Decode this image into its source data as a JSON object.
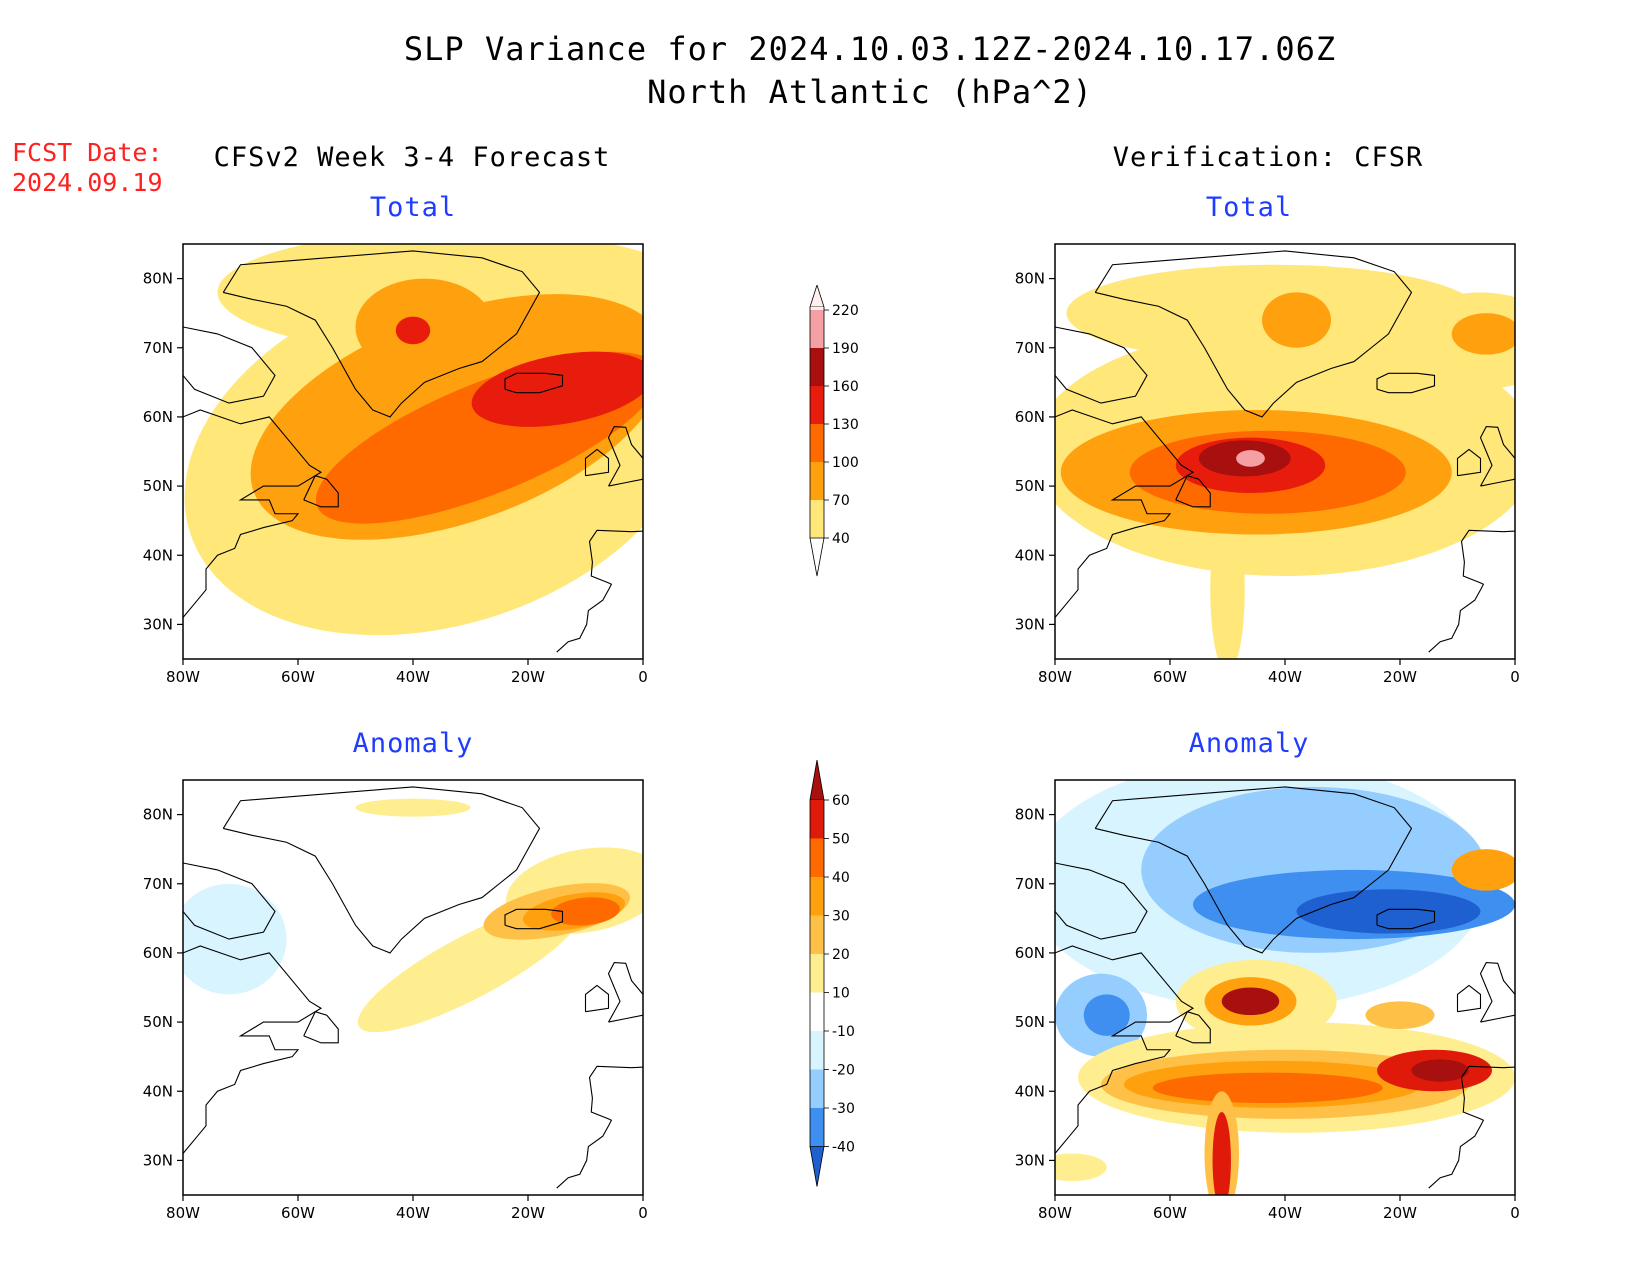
{
  "header": {
    "title_line1": "SLP Variance for 2024.10.03.12Z-2024.10.17.06Z",
    "title_line2": "North Atlantic (hPa^2)"
  },
  "fcst": {
    "label": "FCST Date:",
    "date": "2024.09.19"
  },
  "columns": {
    "left_title": "CFSv2 Week 3-4 Forecast",
    "right_title": "Verification: CFSR"
  },
  "panels": [
    {
      "id": "fc-total",
      "subtitle": "Total"
    },
    {
      "id": "ver-total",
      "subtitle": "Total"
    },
    {
      "id": "fc-anom",
      "subtitle": "Anomaly"
    },
    {
      "id": "ver-anom",
      "subtitle": "Anomaly"
    }
  ],
  "axes": {
    "lat_labels": [
      "80N",
      "70N",
      "60N",
      "50N",
      "40N",
      "30N"
    ],
    "lat_values": [
      80,
      70,
      60,
      50,
      40,
      30
    ],
    "lon_labels": [
      "80W",
      "60W",
      "40W",
      "20W",
      "0"
    ],
    "lon_values": [
      -80,
      -60,
      -40,
      -20,
      0
    ],
    "lat_range": [
      25,
      85
    ],
    "lon_range": [
      -80,
      0
    ]
  },
  "legend_total": {
    "levels": [
      "40",
      "70",
      "100",
      "130",
      "160",
      "190",
      "220"
    ],
    "colors": [
      "#ffe77a",
      "#ffa10f",
      "#ff6a00",
      "#e81c0c",
      "#a80f0f",
      "#f4a0a4",
      "#fff0ee"
    ]
  },
  "legend_anom": {
    "levels": [
      "60",
      "50",
      "40",
      "30",
      "20",
      "10",
      "-10",
      "-20",
      "-30",
      "-40"
    ],
    "colors": [
      "#a80f0f",
      "#e01a0a",
      "#ff6a00",
      "#ffa10f",
      "#ffc048",
      "#ffee90",
      "#ffffff",
      "#d8f4ff",
      "#96cdff",
      "#3f8ff0",
      "#1f60d0"
    ]
  },
  "colors": {
    "title": "#000000",
    "fcst": "#ff2020",
    "subtitle": "#1f3cff"
  }
}
